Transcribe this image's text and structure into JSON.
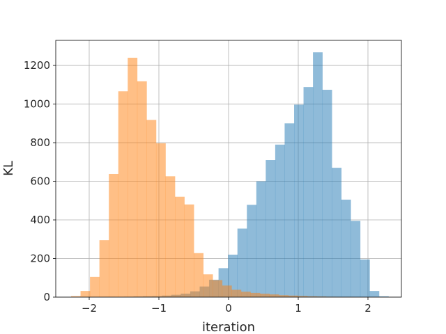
{
  "chart_data": {
    "type": "bar",
    "title": "",
    "xlabel": "iteration",
    "ylabel": "KL",
    "xlim": [
      -2.48,
      2.48
    ],
    "ylim": [
      0,
      1330
    ],
    "xticks": [
      -2,
      -1,
      0,
      1,
      2
    ],
    "xtick_labels": [
      "−2",
      "−1",
      "0",
      "1",
      "2"
    ],
    "yticks": [
      0,
      200,
      400,
      600,
      800,
      1000,
      1200
    ],
    "ytick_labels": [
      "0",
      "200",
      "400",
      "600",
      "800",
      "1000",
      "1200"
    ],
    "grid": true,
    "legend": "none",
    "bin_width": 0.1355,
    "series": [
      {
        "color": "#1f77b4",
        "opacity": 0.5,
        "bin_starts": [
          -1.77,
          -1.6345,
          -1.499,
          -1.3635,
          -1.228,
          -1.0925,
          -0.957,
          -0.8215,
          -0.686,
          -0.5505,
          -0.415,
          -0.2795,
          -0.144,
          -0.0085,
          0.127,
          0.2625,
          0.398,
          0.5335,
          0.669,
          0.8045,
          0.94,
          1.0755,
          1.211,
          1.3465,
          1.482,
          1.6175,
          1.753,
          1.8885,
          2.024,
          2.1595
        ],
        "values": [
          1,
          0,
          2,
          3,
          4,
          5,
          8,
          12,
          18,
          30,
          55,
          90,
          150,
          220,
          355,
          478,
          600,
          710,
          790,
          900,
          997,
          1088,
          1268,
          1074,
          670,
          505,
          395,
          195,
          32,
          4
        ]
      },
      {
        "color": "#ff7f0e",
        "opacity": 0.5,
        "bin_starts": [
          -2.26,
          -2.1245,
          -1.989,
          -1.8535,
          -1.718,
          -1.5825,
          -1.447,
          -1.3115,
          -1.176,
          -1.0405,
          -0.905,
          -0.7695,
          -0.634,
          -0.4985,
          -0.363,
          -0.2275,
          -0.092,
          0.0435,
          0.179,
          0.3145,
          0.45,
          0.5855,
          0.721,
          0.8565,
          0.992,
          1.1275,
          1.263,
          1.3985,
          1.534,
          1.6695
        ],
        "values": [
          5,
          32,
          105,
          295,
          638,
          1066,
          1240,
          1118,
          918,
          797,
          626,
          520,
          480,
          228,
          118,
          88,
          60,
          38,
          28,
          22,
          18,
          14,
          10,
          8,
          6,
          4,
          3,
          2,
          1,
          1
        ]
      }
    ]
  }
}
